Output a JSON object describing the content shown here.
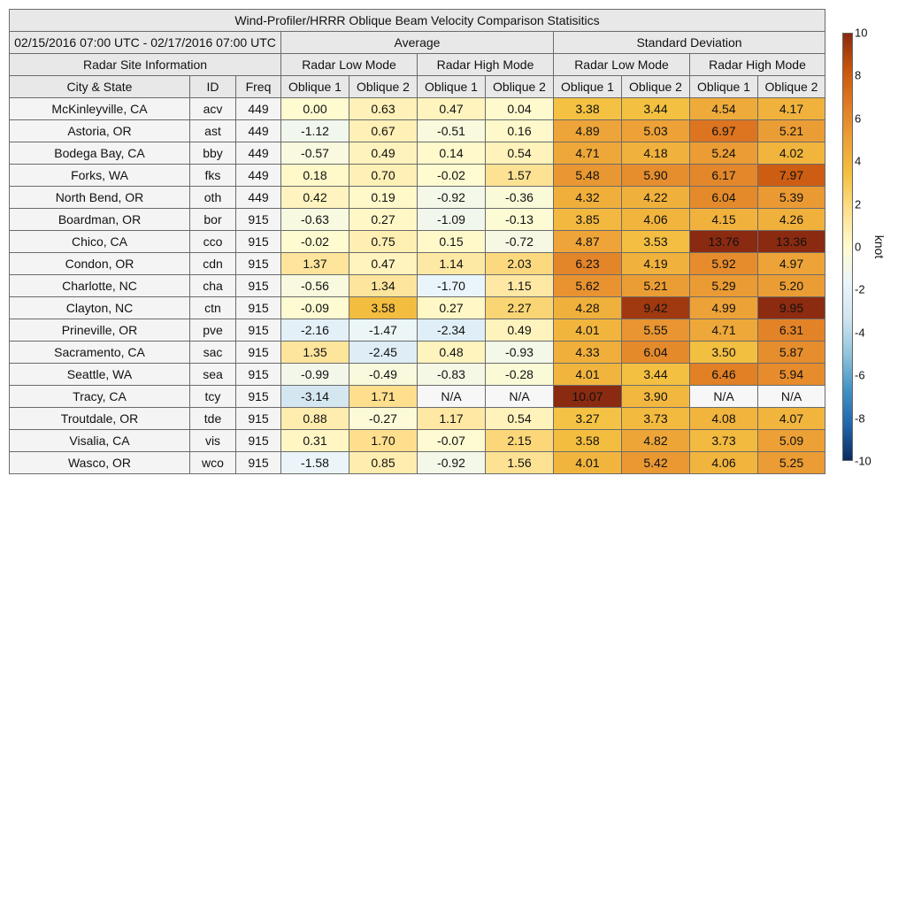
{
  "title": "Wind-Profiler/HRRR Oblique Beam Velocity Comparison Statisitics",
  "period": "02/15/2016 07:00 UTC - 02/17/2016 07:00 UTC",
  "groups": {
    "average": "Average",
    "std": "Standard Deviation"
  },
  "site_info_label": "Radar Site Information",
  "modes": {
    "low": "Radar Low Mode",
    "high": "Radar High Mode"
  },
  "col_labels": {
    "city": "City & State",
    "id": "ID",
    "freq": "Freq",
    "ob1": "Oblique 1",
    "ob2": "Oblique 2"
  },
  "colorbar": {
    "unit": "knot",
    "min": -10,
    "max": 10,
    "ticks": [
      "10",
      "8",
      "6",
      "4",
      "2",
      "0",
      "-2",
      "-4",
      "-6",
      "-8",
      "-10"
    ],
    "colors_low_to_high": [
      "#0b2b5e",
      "#2166ac",
      "#4393c3",
      "#92c5de",
      "#d1e5f0",
      "#eaf5fb",
      "#fffbd0",
      "#fee090",
      "#f4c242",
      "#eda237",
      "#e07b24",
      "#c8550d",
      "#8a2a10"
    ]
  },
  "chart_data": {
    "type": "heatmap",
    "title": "Wind-Profiler/HRRR Oblique Beam Velocity Comparison Statisitics",
    "columns": [
      "Average / Radar Low Mode / Oblique 1",
      "Average / Radar Low Mode / Oblique 2",
      "Average / Radar High Mode / Oblique 1",
      "Average / Radar High Mode / Oblique 2",
      "Standard Deviation / Radar Low Mode / Oblique 1",
      "Standard Deviation / Radar Low Mode / Oblique 2",
      "Standard Deviation / Radar High Mode / Oblique 1",
      "Standard Deviation / Radar High Mode / Oblique 2"
    ],
    "rows": [
      {
        "city": "McKinleyville, CA",
        "id": "acv",
        "freq": "449",
        "values": [
          "0.00",
          "0.63",
          "0.47",
          "0.04",
          "3.38",
          "3.44",
          "4.54",
          "4.17"
        ]
      },
      {
        "city": "Astoria, OR",
        "id": "ast",
        "freq": "449",
        "values": [
          "-1.12",
          "0.67",
          "-0.51",
          "0.16",
          "4.89",
          "5.03",
          "6.97",
          "5.21"
        ]
      },
      {
        "city": "Bodega Bay, CA",
        "id": "bby",
        "freq": "449",
        "values": [
          "-0.57",
          "0.49",
          "0.14",
          "0.54",
          "4.71",
          "4.18",
          "5.24",
          "4.02"
        ]
      },
      {
        "city": "Forks, WA",
        "id": "fks",
        "freq": "449",
        "values": [
          "0.18",
          "0.70",
          "-0.02",
          "1.57",
          "5.48",
          "5.90",
          "6.17",
          "7.97"
        ]
      },
      {
        "city": "North Bend, OR",
        "id": "oth",
        "freq": "449",
        "values": [
          "0.42",
          "0.19",
          "-0.92",
          "-0.36",
          "4.32",
          "4.22",
          "6.04",
          "5.39"
        ]
      },
      {
        "city": "Boardman, OR",
        "id": "bor",
        "freq": "915",
        "values": [
          "-0.63",
          "0.27",
          "-1.09",
          "-0.13",
          "3.85",
          "4.06",
          "4.15",
          "4.26"
        ]
      },
      {
        "city": "Chico, CA",
        "id": "cco",
        "freq": "915",
        "values": [
          "-0.02",
          "0.75",
          "0.15",
          "-0.72",
          "4.87",
          "3.53",
          "13.76",
          "13.36"
        ]
      },
      {
        "city": "Condon, OR",
        "id": "cdn",
        "freq": "915",
        "values": [
          "1.37",
          "0.47",
          "1.14",
          "2.03",
          "6.23",
          "4.19",
          "5.92",
          "4.97"
        ]
      },
      {
        "city": "Charlotte, NC",
        "id": "cha",
        "freq": "915",
        "values": [
          "-0.56",
          "1.34",
          "-1.70",
          "1.15",
          "5.62",
          "5.21",
          "5.29",
          "5.20"
        ]
      },
      {
        "city": "Clayton, NC",
        "id": "ctn",
        "freq": "915",
        "values": [
          "-0.09",
          "3.58",
          "0.27",
          "2.27",
          "4.28",
          "9.42",
          "4.99",
          "9.95"
        ]
      },
      {
        "city": "Prineville, OR",
        "id": "pve",
        "freq": "915",
        "values": [
          "-2.16",
          "-1.47",
          "-2.34",
          "0.49",
          "4.01",
          "5.55",
          "4.71",
          "6.31"
        ]
      },
      {
        "city": "Sacramento, CA",
        "id": "sac",
        "freq": "915",
        "values": [
          "1.35",
          "-2.45",
          "0.48",
          "-0.93",
          "4.33",
          "6.04",
          "3.50",
          "5.87"
        ]
      },
      {
        "city": "Seattle, WA",
        "id": "sea",
        "freq": "915",
        "values": [
          "-0.99",
          "-0.49",
          "-0.83",
          "-0.28",
          "4.01",
          "3.44",
          "6.46",
          "5.94"
        ]
      },
      {
        "city": "Tracy, CA",
        "id": "tcy",
        "freq": "915",
        "values": [
          "-3.14",
          "1.71",
          "N/A",
          "N/A",
          "10.07",
          "3.90",
          "N/A",
          "N/A"
        ]
      },
      {
        "city": "Troutdale, OR",
        "id": "tde",
        "freq": "915",
        "values": [
          "0.88",
          "-0.27",
          "1.17",
          "0.54",
          "3.27",
          "3.73",
          "4.08",
          "4.07"
        ]
      },
      {
        "city": "Visalia, CA",
        "id": "vis",
        "freq": "915",
        "values": [
          "0.31",
          "1.70",
          "-0.07",
          "2.15",
          "3.58",
          "4.82",
          "3.73",
          "5.09"
        ]
      },
      {
        "city": "Wasco, OR",
        "id": "wco",
        "freq": "915",
        "values": [
          "-1.58",
          "0.85",
          "-0.92",
          "1.56",
          "4.01",
          "5.42",
          "4.06",
          "5.25"
        ]
      }
    ]
  }
}
